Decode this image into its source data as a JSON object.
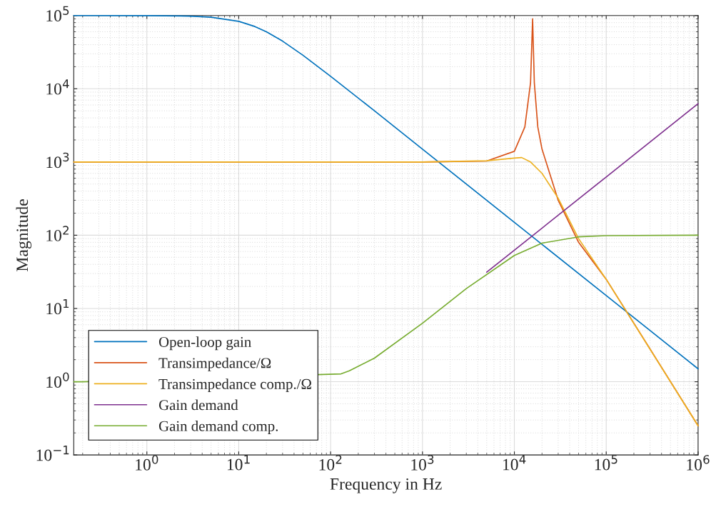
{
  "chart_data": {
    "type": "line",
    "xlabel": "Frequency in Hz",
    "ylabel": "Magnitude",
    "log": "xy",
    "grid": true,
    "legend": "bottom left",
    "line_style": "solid",
    "xlim": [
      0.16,
      1000000
    ],
    "ylim": [
      0.1,
      100000
    ],
    "xticks": [
      {
        "value": 1,
        "label": "10$^{0}$"
      },
      {
        "value": 10,
        "label": "10$^{1}$"
      },
      {
        "value": 100,
        "label": "10$^{2}$"
      },
      {
        "value": 1000,
        "label": "10$^{3}$"
      },
      {
        "value": 10000,
        "label": "10$^{4}$"
      },
      {
        "value": 100000,
        "label": "10$^{5}$"
      },
      {
        "value": 1000000,
        "label": "10$^{6}$"
      }
    ],
    "yticks": [
      {
        "value": 0.1,
        "label": "10$^{−1}$"
      },
      {
        "value": 1,
        "label": "10$^{0}$"
      },
      {
        "value": 10,
        "label": "10$^{1}$"
      },
      {
        "value": 100,
        "label": "10$^{2}$"
      },
      {
        "value": 1000,
        "label": "10$^{3}$"
      },
      {
        "value": 10000,
        "label": "10$^{4}$"
      },
      {
        "value": 100000,
        "label": "10$^{5}$"
      }
    ],
    "series": [
      {
        "name": "Open-loop gain",
        "color": "#0072bd",
        "x": [
          0.16,
          1,
          3,
          5,
          10,
          15,
          20,
          30,
          50,
          100,
          300,
          1000,
          10000,
          100000,
          1000000
        ],
        "values": [
          100000,
          99800,
          98100,
          94900,
          83200,
          70700,
          60000,
          44700,
          28700,
          14800,
          5000,
          1500,
          150,
          15,
          1.5
        ]
      },
      {
        "name": "Transimpedance/Ω",
        "color": "#d95319",
        "x": [
          0.16,
          1000,
          5000,
          10000,
          13000,
          15000,
          15800,
          16500,
          18000,
          20000,
          30000,
          50000,
          100000,
          300000,
          1000000
        ],
        "values": [
          1000,
          1000,
          1030,
          1400,
          3000,
          12000,
          90000,
          12000,
          3000,
          1500,
          300,
          80,
          25,
          2.8,
          0.25
        ]
      },
      {
        "name": "Transimpedance comp./Ω",
        "color": "#edb120",
        "x": [
          0.16,
          1000,
          5000,
          10000,
          12000,
          15000,
          20000,
          30000,
          50000,
          100000,
          1000000
        ],
        "values": [
          1000,
          1000,
          1040,
          1130,
          1150,
          1000,
          700,
          320,
          90,
          25,
          0.25
        ]
      },
      {
        "name": "Gain demand",
        "color": "#7e2f8e",
        "x": [
          5000,
          10000,
          100000,
          1000000
        ],
        "values": [
          31.3,
          62.5,
          625,
          6250
        ]
      },
      {
        "name": "Gain demand comp.",
        "color": "#77ac30",
        "x": [
          0.16,
          0.2,
          10,
          30,
          130,
          160,
          300,
          1000,
          3000,
          10000,
          20000,
          50000,
          100000,
          1000000
        ],
        "values": [
          1,
          1,
          null,
          null,
          1.28,
          1.41,
          2.1,
          6.3,
          18.7,
          53,
          78,
          95,
          98.7,
          100
        ]
      }
    ]
  }
}
